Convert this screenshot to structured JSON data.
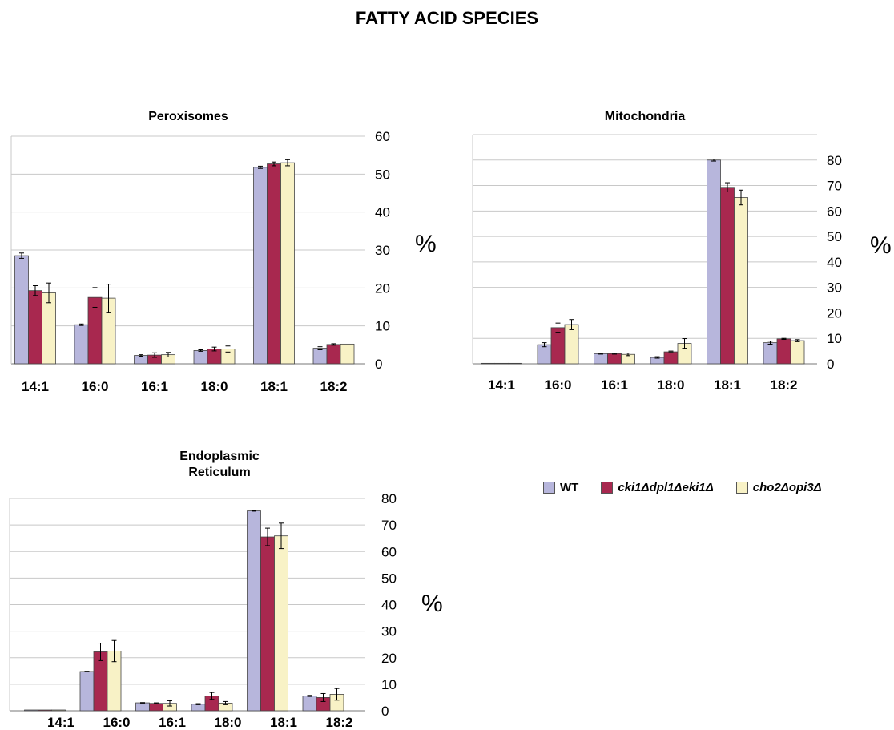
{
  "figure_title": "FATTY ACID SPECIES",
  "legend": [
    {
      "label": "WT",
      "color": "#b7b6dc"
    },
    {
      "label": "cki1Δdpl1Δeki1Δ",
      "color": "#a8284f"
    },
    {
      "label": "cho2Δopi3Δ",
      "color": "#f8f2c6"
    }
  ],
  "chart_data": [
    {
      "type": "bar",
      "title": "Peroxisomes",
      "ylabel": "%",
      "categories": [
        "14:1",
        "16:0",
        "16:1",
        "18:0",
        "18:1",
        "18:2"
      ],
      "ylim": [
        0,
        60
      ],
      "yticks": [
        0,
        10,
        20,
        30,
        40,
        50,
        60
      ],
      "series": [
        {
          "name": "WT",
          "values": [
            28.5,
            10.3,
            2.2,
            3.5,
            51.8,
            4.1
          ],
          "errors": [
            0.7,
            0.2,
            0.2,
            0.2,
            0.3,
            0.4
          ]
        },
        {
          "name": "cki1Δdpl1Δeki1Δ",
          "values": [
            19.3,
            17.5,
            2.3,
            3.9,
            52.7,
            5.1
          ],
          "errors": [
            1.3,
            2.6,
            0.6,
            0.5,
            0.5,
            0.2
          ]
        },
        {
          "name": "cho2Δopi3Δ",
          "values": [
            18.7,
            17.3,
            2.4,
            3.9,
            53.0,
            5.2
          ],
          "errors": [
            2.6,
            3.7,
            0.6,
            0.8,
            0.8,
            0.0
          ]
        }
      ]
    },
    {
      "type": "bar",
      "title": "Mitochondria",
      "ylabel": "%",
      "categories": [
        "14:1",
        "16:0",
        "16:1",
        "18:0",
        "18:1",
        "18:2"
      ],
      "ylim": [
        0,
        90
      ],
      "yticks": [
        0,
        10,
        20,
        30,
        40,
        50,
        60,
        70,
        80
      ],
      "series": [
        {
          "name": "WT",
          "values": [
            0.2,
            7.5,
            4.0,
            2.5,
            80.0,
            8.3
          ],
          "errors": [
            0.0,
            0.8,
            0.2,
            0.3,
            0.4,
            0.6
          ]
        },
        {
          "name": "cki1Δdpl1Δeki1Δ",
          "values": [
            0.2,
            14.2,
            4.0,
            4.7,
            69.3,
            9.8
          ],
          "errors": [
            0.0,
            1.8,
            0.2,
            0.3,
            1.8,
            0.2
          ]
        },
        {
          "name": "cho2Δopi3Δ",
          "values": [
            0.2,
            15.4,
            3.7,
            8.0,
            65.3,
            9.1
          ],
          "errors": [
            0.0,
            2.0,
            0.5,
            1.9,
            2.9,
            0.4
          ]
        }
      ]
    },
    {
      "type": "bar",
      "title": "Endoplasmic\nReticulum",
      "ylabel": "%",
      "categories": [
        "14:1",
        "16:0",
        "16:1",
        "18:0",
        "18:1",
        "18:2"
      ],
      "ylim": [
        0,
        80
      ],
      "yticks": [
        0,
        10,
        20,
        30,
        40,
        50,
        60,
        70,
        80
      ],
      "series": [
        {
          "name": "WT",
          "values": [
            0.3,
            14.8,
            3.0,
            2.5,
            75.3,
            5.6
          ],
          "errors": [
            0.0,
            0.1,
            0.1,
            0.2,
            0.1,
            0.2
          ]
        },
        {
          "name": "cki1Δdpl1Δeki1Δ",
          "values": [
            0.3,
            22.2,
            2.8,
            5.6,
            65.5,
            5.0
          ],
          "errors": [
            0.0,
            3.3,
            0.2,
            1.3,
            3.3,
            1.5
          ]
        },
        {
          "name": "cho2Δopi3Δ",
          "values": [
            0.3,
            22.5,
            2.8,
            2.9,
            65.9,
            6.2
          ],
          "errors": [
            0.0,
            4.0,
            1.0,
            0.6,
            4.8,
            2.2
          ]
        }
      ]
    }
  ]
}
